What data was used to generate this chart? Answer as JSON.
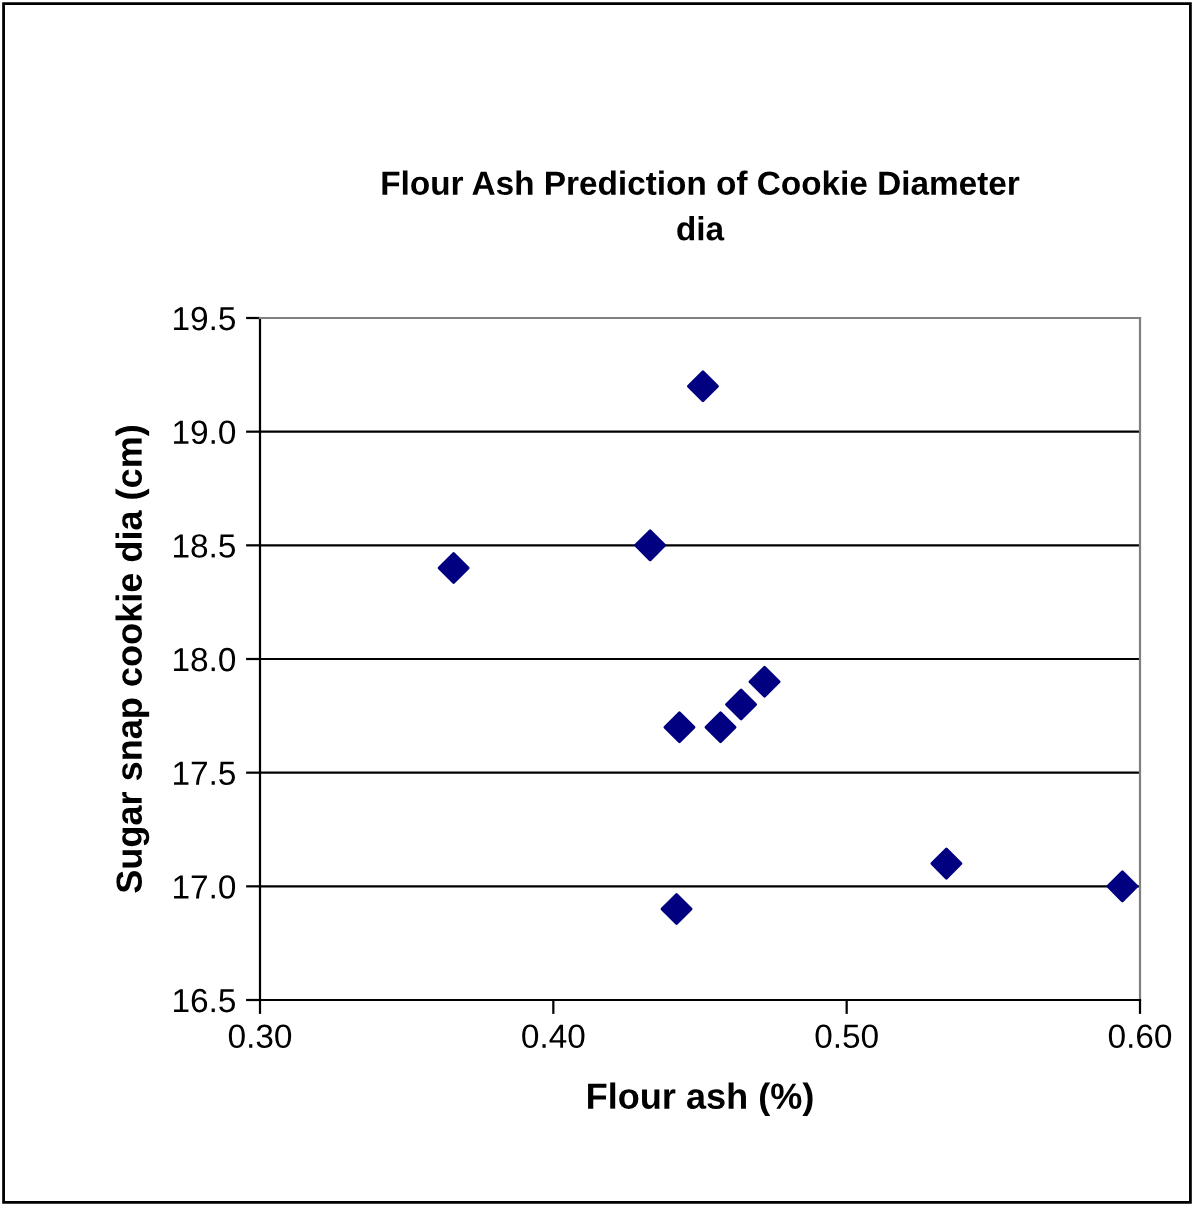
{
  "chart_data": {
    "type": "scatter",
    "title": "Flour Ash Prediction of Cookie Diameter\ndia",
    "xlabel": "Flour ash (%)",
    "ylabel": "Sugar snap cookie dia (cm)",
    "x": [
      0.366,
      0.433,
      0.451,
      0.443,
      0.442,
      0.457,
      0.464,
      0.472,
      0.534,
      0.594
    ],
    "series": [
      {
        "color": "#000080",
        "values": [
          18.4,
          18.5,
          19.2,
          17.7,
          16.9,
          17.7,
          17.8,
          17.9,
          17.1,
          17.0
        ]
      }
    ],
    "xlim": [
      0.3,
      0.6
    ],
    "xticks": [
      {
        "value": 0.3,
        "label": "0.30"
      },
      {
        "value": 0.4,
        "label": "0.40"
      },
      {
        "value": 0.5,
        "label": "0.50"
      },
      {
        "value": 0.6,
        "label": "0.60"
      }
    ],
    "ylim": [
      16.5,
      19.5
    ],
    "yticks": [
      {
        "value": 16.5,
        "label": "16.5"
      },
      {
        "value": 17.0,
        "label": "17.0"
      },
      {
        "value": 17.5,
        "label": "17.5"
      },
      {
        "value": 18.0,
        "label": "18.0"
      },
      {
        "value": 18.5,
        "label": "18.5"
      },
      {
        "value": 19.0,
        "label": "19.0"
      },
      {
        "value": 19.5,
        "label": "19.5"
      }
    ],
    "grid": "y",
    "marker": "diamond"
  }
}
